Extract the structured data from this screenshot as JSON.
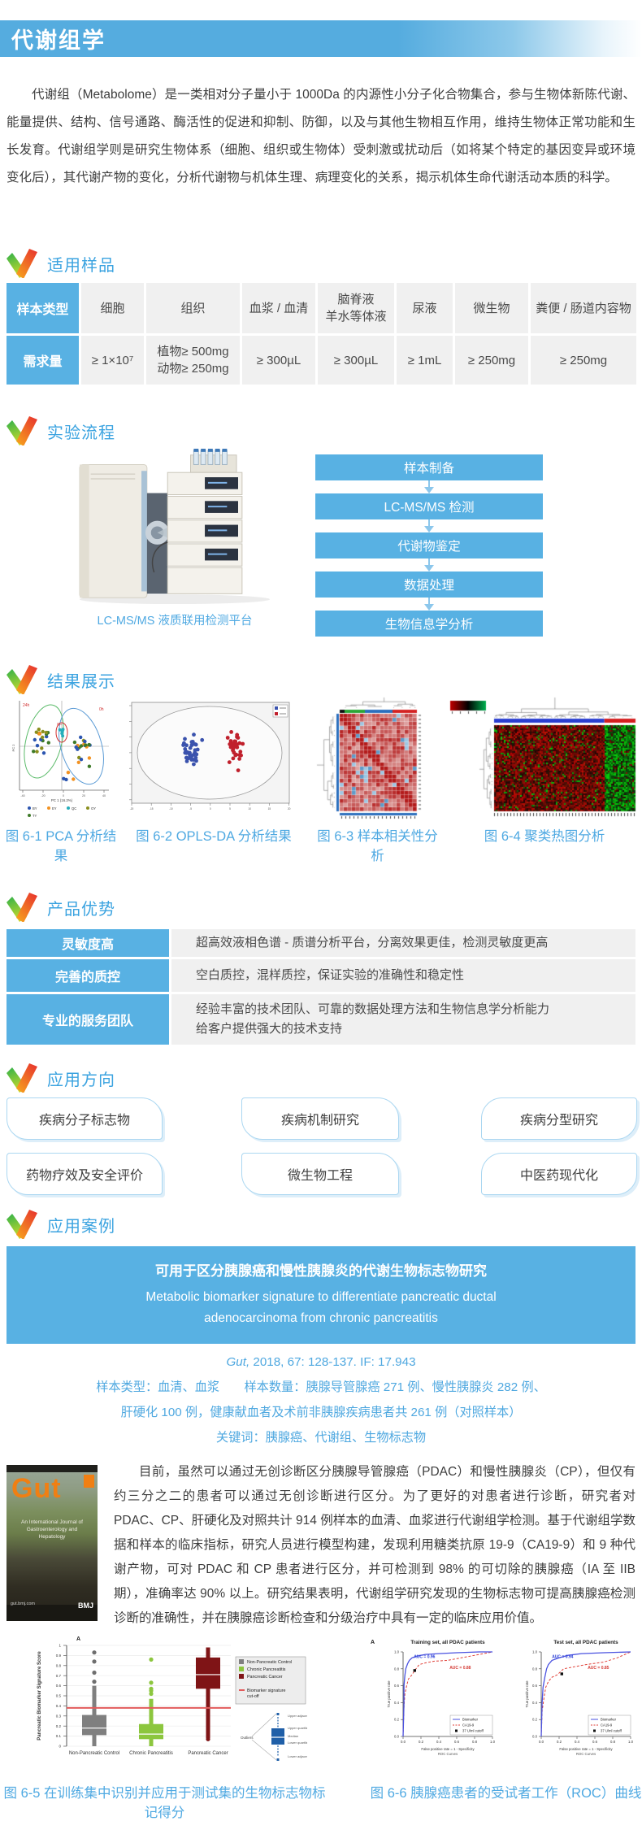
{
  "page": {
    "title_bar": "代谢组学"
  },
  "intro": {
    "text": "代谢组（Metabolome）是一类相对分子量小于 1000Da 的内源性小分子化合物集合，参与生物体新陈代谢、能量提供、结构、信号通路、酶活性的促进和抑制、防御，以及与其他生物相互作用，维持生物体正常功能和生长发育。代谢组学则是研究生物体系（细胞、组织或生物体）受刺激或扰动后（如将某个特定的基因变异或环境变化后），其代谢产物的变化，分析代谢物与机体生理、病理变化的关系，揭示机体生命代谢活动本质的科学。"
  },
  "sections": {
    "samples": "适用样品",
    "workflow": "实验流程",
    "results": "结果展示",
    "advantages": "产品优势",
    "applications": "应用方向",
    "case": "应用案例"
  },
  "sample_table": {
    "row_headers": [
      "样本类型",
      "需求量"
    ],
    "columns": [
      {
        "type_lines": [
          "细胞"
        ],
        "amount_lines": [
          "≥ 1×10⁷"
        ]
      },
      {
        "type_lines": [
          "组织"
        ],
        "amount_lines": [
          "植物≥ 500mg",
          "动物≥ 250mg"
        ]
      },
      {
        "type_lines": [
          "血浆 / 血清"
        ],
        "amount_lines": [
          "≥ 300µL"
        ]
      },
      {
        "type_lines": [
          "脑脊液",
          "羊水等体液"
        ],
        "amount_lines": [
          "≥ 300µL"
        ]
      },
      {
        "type_lines": [
          "尿液"
        ],
        "amount_lines": [
          "≥ 1mL"
        ]
      },
      {
        "type_lines": [
          "微生物"
        ],
        "amount_lines": [
          "≥ 250mg"
        ]
      },
      {
        "type_lines": [
          "粪便 / 肠道内容物"
        ],
        "amount_lines": [
          "≥ 250mg"
        ]
      }
    ]
  },
  "workflow": {
    "instrument_caption": "LC-MS/MS 液质联用检测平台",
    "steps": [
      "样本制备",
      "LC-MS/MS 检测",
      "代谢物鉴定",
      "数据处理",
      "生物信息学分析"
    ]
  },
  "result_figures": {
    "captions": [
      "图 6-1 PCA 分析结果",
      "图 6-2 OPLS-DA 分析结果",
      "图 6-3 样本相关性分析",
      "图 6-4 聚类热图分析"
    ]
  },
  "advantages": {
    "rows": [
      {
        "label": "灵敏度高",
        "desc_lines": [
          "超高效液相色谱 - 质谱分析平台，分离效果更佳，检测灵敏度更高"
        ]
      },
      {
        "label": "完善的质控",
        "desc_lines": [
          "空白质控，混样质控，保证实验的准确性和稳定性"
        ]
      },
      {
        "label": "专业的服务团队",
        "desc_lines": [
          "经验丰富的技术团队、可靠的数据处理方法和生物信息学分析能力",
          "给客户提供强大的技术支持"
        ]
      }
    ]
  },
  "applications": {
    "items": [
      "疾病分子标志物",
      "疾病机制研究",
      "疾病分型研究",
      "药物疗效及安全评价",
      "微生物工程",
      "中医药现代化"
    ]
  },
  "case": {
    "title_zh": "可用于区分胰腺癌和慢性胰腺炎的代谢生物标志物研究",
    "title_en_line1": "Metabolic biomarker signature to differentiate pancreatic ductal",
    "title_en_line2": "adenocarcinoma from chronic pancreatitis",
    "journal_italic": "Gut,",
    "citation_rest": " 2018, 67: 128-137. IF: 17.943",
    "info_line1": "样本类型：血清、血浆　　样本数量：胰腺导管腺癌 271 例、慢性胰腺炎 282 例、",
    "info_line2": "肝硬化 100 例，健康献血者及术前非胰腺疾病患者共 261 例（对照样本）",
    "info_line3": "关键词：胰腺癌、代谢组、生物标志物",
    "body": "目前，虽然可以通过无创诊断区分胰腺导管腺癌（PDAC）和慢性胰腺炎（CP），但仅有约三分之二的患者可以通过无创诊断进行区分。为了更好的对患者进行诊断，研究者对 PDAC、CP、肝硬化及对照共计 914 例样本的血清、血浆进行代谢组学检测。基于代谢组学数据和样本的临床指标，研究人员进行模型构建，发现利用糖类抗原 19-9（CA19-9）和 9 种代谢产物，可对 PDAC 和 CP 患者进行区分，并可检测到 98% 的可切除的胰腺癌（IA 至 IIB 期），准确率达 90% 以上。研究结果表明，代谢组学研究发现的生物标志物可提高胰腺癌检测诊断的准确性，并在胰腺癌诊断检查和分级治疗中具有一定的临床应用价值。"
  },
  "journal_cover": {
    "name": "Gut",
    "subtitle": "An International Journal of Gastroenterology and Hepatology",
    "publisher": "BMJ",
    "url_text": "gut.bmj.com"
  },
  "bottom_figures": {
    "captions": [
      "图 6-5 在训练集中识别并应用于测试集的生物标志物标记得分",
      "图 6-6 胰腺癌患者的受试者工作（ROC）曲线"
    ]
  },
  "colors": {
    "accent_blue": "#58B1E3",
    "section_title_blue": "#3BA3E0",
    "caption_blue": "#4FA9E2",
    "table_gray": "#F0F0F0",
    "flow_arrow_blue": "#8CC7EC",
    "app_box_border": "#ABD7F1",
    "cutoff_red": "#E25B5B",
    "gut_orange": "#F07F13"
  },
  "chart_data": [
    {
      "id": "fig-6-1",
      "type": "scatter",
      "title": "图 6-1 PCA 分析结果",
      "xlabel": "PC 1 (16.2%)",
      "ylabel": "PC 2",
      "legend": [
        "BY",
        "EY",
        "QC",
        "OY",
        "TY"
      ],
      "legend_colors": [
        "#2B55B0",
        "#F29222",
        "#27AEBB",
        "#8A8F1E",
        "#3E7A28"
      ],
      "annotations": [
        "24h",
        "0h",
        "QC"
      ],
      "xticks": [
        -40,
        -20,
        0,
        20,
        40
      ],
      "grid": false
    },
    {
      "id": "fig-6-2",
      "type": "scatter",
      "title": "图 6-2 OPLS-DA 分析结果",
      "series": [
        {
          "name": "",
          "color": "#3A52AD"
        },
        {
          "name": "",
          "color": "#C0202C"
        }
      ],
      "legend_position": "top-right",
      "grid": false
    },
    {
      "id": "fig-6-3",
      "type": "heatmap",
      "title": "图 6-3 样本相关性分析",
      "palette": [
        "#B3161B",
        "#E9B4AE",
        "#FFFFFF",
        "#5E9BC9"
      ],
      "sidebar_color": "#2B6FBD",
      "top_band_colors": [
        "#111111",
        "#2CA636",
        "#2B6FBD",
        "#D42222"
      ]
    },
    {
      "id": "fig-6-4",
      "type": "heatmap",
      "title": "图 6-4 聚类热图分析",
      "palette": [
        "#C00000",
        "#000000",
        "#00B050"
      ],
      "top_band_colors": [
        "#2B3FD0",
        "#D42020"
      ]
    },
    {
      "id": "fig-6-5",
      "type": "boxplot",
      "panel_letter": "A",
      "ylabel": "Pancreatic Biomarker Signature Score",
      "ylim": [
        0,
        1
      ],
      "yticks": [
        "0",
        "0.1",
        "0.2",
        "0.3",
        "0.4",
        "0.5",
        "0.6",
        "0.7",
        "0.8",
        "0.9",
        "1"
      ],
      "categories": [
        "Non-Pancreatic Control",
        "Chronic Pancreatitis",
        "Pancreatic Cancer"
      ],
      "colors": [
        "#7F7F7F",
        "#8CC63E",
        "#7F1416"
      ],
      "stats": [
        {
          "low": 0.0,
          "q1": 0.11,
          "med": 0.18,
          "q3": 0.31,
          "high": 0.6,
          "outliers": [
            0.64,
            0.73,
            0.84,
            0.93
          ]
        },
        {
          "low": 0.0,
          "q1": 0.07,
          "med": 0.12,
          "q3": 0.22,
          "high": 0.47,
          "outliers": [
            0.52,
            0.55,
            0.57,
            0.63,
            0.86
          ]
        },
        {
          "low": 0.08,
          "q1": 0.57,
          "med": 0.71,
          "q3": 0.88,
          "high": 0.98,
          "outliers": [
            0.07
          ]
        }
      ],
      "cutoff": 0.38,
      "legend": [
        "Non-Pancreatic Control",
        "Chronic Pancreatitis",
        "Pancreatic Cancer"
      ],
      "cutoff_label_line1": "Biomarker signature",
      "cutoff_label_line2": "cut-off",
      "anatomy_labels": [
        "Outliers",
        "Upper adjacent value",
        "Upper quartile (Q3)",
        "Median",
        "Lower quartile (Q1)",
        "Lower adjacent value"
      ]
    },
    {
      "id": "fig-6-6",
      "type": "line",
      "panel_letter": "A",
      "ylabel": "True positive rate",
      "xlabel": "False positive rate = 1 - Specificity",
      "xlabel2": "ROC Curves",
      "ticks": [
        "0.0",
        "0.2",
        "0.4",
        "0.6",
        "0.8",
        "1.0"
      ],
      "legend": [
        "Biomarker",
        "CA19-9",
        "37 U/ml cutoff"
      ],
      "panels": [
        {
          "title": "Training set, all PDAC patients",
          "auc_biomarker": "AUC = 0.96",
          "auc_ca199": "AUC = 0.88",
          "biomarker": [
            [
              0,
              0
            ],
            [
              0.01,
              0.38
            ],
            [
              0.01,
              0.6
            ],
            [
              0.02,
              0.72
            ],
            [
              0.03,
              0.8
            ],
            [
              0.05,
              0.86
            ],
            [
              0.07,
              0.9
            ],
            [
              0.1,
              0.93
            ],
            [
              0.15,
              0.95
            ],
            [
              0.25,
              0.97
            ],
            [
              0.4,
              0.98
            ],
            [
              0.6,
              0.99
            ],
            [
              0.85,
              1
            ],
            [
              1,
              1
            ]
          ],
          "ca199": [
            [
              0,
              0
            ],
            [
              0.01,
              0.35
            ],
            [
              0.02,
              0.5
            ],
            [
              0.04,
              0.6
            ],
            [
              0.06,
              0.68
            ],
            [
              0.1,
              0.73
            ],
            [
              0.13,
              0.78
            ],
            [
              0.18,
              0.85
            ],
            [
              0.25,
              0.87
            ],
            [
              0.35,
              0.89
            ],
            [
              0.5,
              0.9
            ],
            [
              0.65,
              0.93
            ],
            [
              0.8,
              0.96
            ],
            [
              1,
              1
            ]
          ],
          "cutoff_point": [
            0.13,
            0.78
          ]
        },
        {
          "title": "Test set, all PDAC patients",
          "auc_biomarker": "AUC = 0.94",
          "auc_ca199": "AUC = 0.85",
          "biomarker": [
            [
              0,
              0
            ],
            [
              0.01,
              0.4
            ],
            [
              0.02,
              0.58
            ],
            [
              0.04,
              0.7
            ],
            [
              0.06,
              0.8
            ],
            [
              0.08,
              0.85
            ],
            [
              0.12,
              0.9
            ],
            [
              0.2,
              0.93
            ],
            [
              0.3,
              0.96
            ],
            [
              0.45,
              0.98
            ],
            [
              0.7,
              0.99
            ],
            [
              1,
              1
            ]
          ],
          "ca199": [
            [
              0,
              0
            ],
            [
              0.01,
              0.3
            ],
            [
              0.03,
              0.45
            ],
            [
              0.05,
              0.58
            ],
            [
              0.08,
              0.65
            ],
            [
              0.12,
              0.7
            ],
            [
              0.18,
              0.73
            ],
            [
              0.25,
              0.8
            ],
            [
              0.35,
              0.82
            ],
            [
              0.5,
              0.85
            ],
            [
              0.7,
              0.88
            ],
            [
              0.85,
              0.93
            ],
            [
              1,
              1
            ]
          ],
          "cutoff_point": [
            0.23,
            0.74
          ]
        }
      ]
    }
  ]
}
